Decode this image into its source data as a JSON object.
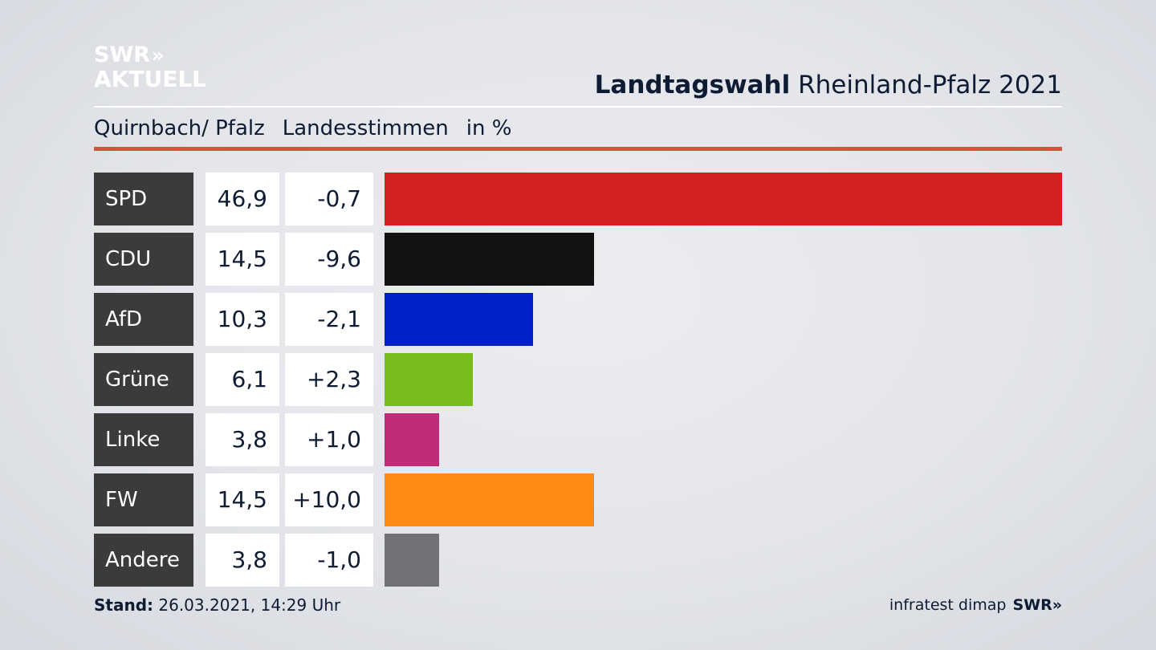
{
  "brand": {
    "logo_line1": "SWR",
    "logo_line2": "AKTUELL",
    "logo_chevrons": "»",
    "footer_swr": "SWR»"
  },
  "header": {
    "title_bold": "Landtagswahl",
    "title_rest": "Rheinland-Pfalz 2021",
    "location": "Quirnbach/ Pfalz",
    "measure": "Landesstimmen",
    "unit": "in %"
  },
  "footer": {
    "stand_label": "Stand:",
    "stand_value": "26.03.2021, 14:29 Uhr",
    "source": "infratest dimap"
  },
  "chart_data": {
    "type": "bar",
    "orientation": "horizontal",
    "categories": [
      "SPD",
      "CDU",
      "AfD",
      "Grüne",
      "Linke",
      "FW",
      "Andere"
    ],
    "values": [
      46.9,
      14.5,
      10.3,
      6.1,
      3.8,
      14.5,
      3.8
    ],
    "value_labels": [
      "46,9",
      "14,5",
      "10,3",
      "6,1",
      "3,8",
      "14,5",
      "3,8"
    ],
    "diff_labels": [
      "-0,7",
      "-9,6",
      "-2,1",
      "+2,3",
      "+1,0",
      "+10,0",
      "-1,0"
    ],
    "diffs": [
      -0.7,
      -9.6,
      -2.1,
      2.3,
      1.0,
      10.0,
      -1.0
    ],
    "colors": [
      "#d42020",
      "#121212",
      "#0021c8",
      "#79bd1d",
      "#c02c78",
      "#fd8a14",
      "#717276"
    ],
    "xlim": [
      0,
      46.9
    ],
    "grid": false,
    "legend": "none"
  }
}
